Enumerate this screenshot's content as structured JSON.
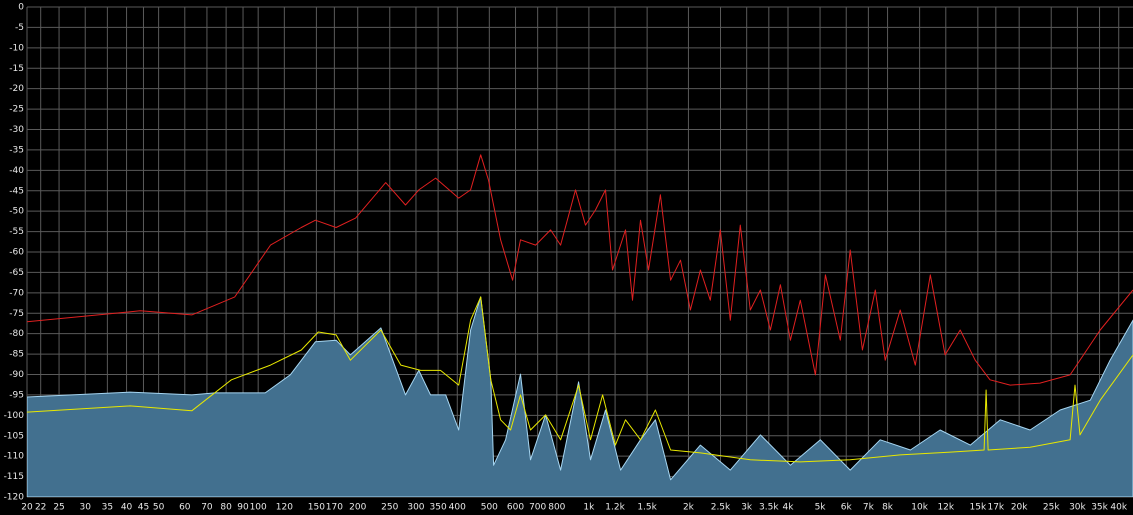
{
  "chart_data": {
    "type": "line",
    "xscale": "log",
    "grid": true,
    "background": "#000000",
    "xlim": [
      20,
      44180
    ],
    "ylim": [
      -120,
      0
    ],
    "xticks": [
      20,
      22,
      25,
      30,
      35,
      40,
      45,
      50,
      60,
      70,
      80,
      90,
      100,
      120,
      150,
      170,
      200,
      250,
      300,
      350,
      400,
      500,
      600,
      700,
      800,
      {
        "value": 1000,
        "label": "1k"
      },
      {
        "value": 1200,
        "label": "1.2k"
      },
      {
        "value": 1500,
        "label": "1.5k"
      },
      {
        "value": 2000,
        "label": "2k"
      },
      {
        "value": 2500,
        "label": "2.5k"
      },
      {
        "value": 3000,
        "label": "3k"
      },
      {
        "value": 3500,
        "label": "3.5k"
      },
      {
        "value": 4000,
        "label": "4k"
      },
      {
        "value": 5000,
        "label": "5k"
      },
      {
        "value": 6000,
        "label": "6k"
      },
      {
        "value": 7000,
        "label": "7k"
      },
      {
        "value": 8000,
        "label": "8k"
      },
      {
        "value": 10000,
        "label": "10k"
      },
      {
        "value": 12000,
        "label": "12k"
      },
      {
        "value": 15000,
        "label": "15k"
      },
      {
        "value": 17000,
        "label": "17k"
      },
      {
        "value": 20000,
        "label": "20k"
      },
      {
        "value": 25000,
        "label": "25k"
      },
      {
        "value": 30000,
        "label": "30k"
      },
      {
        "value": 35000,
        "label": "35k"
      },
      {
        "value": 40000,
        "label": "40k"
      }
    ],
    "yticks": [
      0,
      -5,
      -10,
      -15,
      -20,
      -25,
      -30,
      -35,
      -40,
      -45,
      -50,
      -55,
      -60,
      -65,
      -70,
      -75,
      -80,
      -85,
      -90,
      -95,
      -100,
      -105,
      -110,
      -115,
      -120
    ],
    "series": [
      {
        "type": "area",
        "color": "#42708f",
        "edge_color": "#a6d6f2",
        "x": [
          20,
          41,
          63,
          74,
          105,
          125,
          149,
          172,
          190,
          235,
          279,
          306,
          332,
          369,
          404,
          439,
          471,
          505,
          515,
          560,
          621,
          666,
          740,
          821,
          931,
          1011,
          1123,
          1247,
          1432,
          1589,
          1766,
          2173,
          2677,
          3300,
          4067,
          5011,
          6168,
          7602,
          9377,
          11536,
          14230,
          17540,
          21580,
          26600,
          32810,
          37680,
          44180
        ],
        "values": [
          -95.5,
          -94.3,
          -95,
          -94.5,
          -94.5,
          -90.1,
          -82,
          -81.6,
          -85.2,
          -78.6,
          -95,
          -89,
          -95,
          -95,
          -103.6,
          -79.1,
          -71,
          -91.3,
          -112.2,
          -106,
          -89.9,
          -110.9,
          -99.9,
          -113.4,
          -91.8,
          -110.9,
          -98.7,
          -113.4,
          -106,
          -101.1,
          -115.8,
          -107.3,
          -113.4,
          -104.8,
          -112.2,
          -106,
          -113.4,
          -106,
          -108.5,
          -103.6,
          -107.3,
          -101.1,
          -103.6,
          -98.7,
          -96.3,
          -86.5,
          -76.7
        ]
      },
      {
        "type": "line",
        "color": "#e8e800",
        "x": [
          20,
          41,
          63,
          83,
          109,
          135,
          152,
          172,
          190,
          235,
          270,
          310,
          356,
          404,
          439,
          471,
          505,
          541,
          580,
          621,
          666,
          740,
          821,
          931,
          1011,
          1100,
          1203,
          1290,
          1432,
          1589,
          1766,
          2173,
          3077,
          4359,
          6168,
          8736,
          12390,
          15670,
          15890,
          16110,
          21580,
          28510,
          29510,
          30550,
          35150,
          44180
        ],
        "values": [
          -99.2,
          -97.7,
          -98.9,
          -91.3,
          -87.7,
          -84,
          -79.6,
          -80.3,
          -86.5,
          -79.1,
          -87.7,
          -89,
          -89,
          -92.6,
          -76.7,
          -71,
          -91.3,
          -101.1,
          -103.6,
          -95,
          -103.6,
          -99.9,
          -106,
          -92.6,
          -106,
          -95,
          -107.3,
          -101.1,
          -106,
          -98.7,
          -108.5,
          -109.2,
          -110.9,
          -111.4,
          -110.9,
          -109.7,
          -109,
          -108.5,
          -93.8,
          -108.5,
          -107.8,
          -106,
          -92.6,
          -104.8,
          -96.3,
          -85.2
        ]
      },
      {
        "type": "line",
        "color": "#e02020",
        "x": [
          20,
          44,
          63,
          85,
          109,
          135,
          149,
          172,
          197,
          243,
          279,
          306,
          344,
          404,
          439,
          471,
          497,
          541,
          588,
          621,
          690,
          766,
          821,
          911,
          977,
          1047,
          1123,
          1179,
          1290,
          1355,
          1432,
          1514,
          1645,
          1766,
          1892,
          2028,
          2173,
          2329,
          2497,
          2677,
          2870,
          3077,
          3300,
          3539,
          3794,
          4067,
          4359,
          4842,
          5188,
          5755,
          6168,
          6713,
          7345,
          7870,
          8736,
          9705,
          10770,
          11943,
          13270,
          14730,
          16330,
          18790,
          23120,
          28510,
          35150,
          44180
        ],
        "values": [
          -77.1,
          -74.4,
          -75.4,
          -71,
          -58.3,
          -54,
          -52.2,
          -54,
          -51.7,
          -43,
          -48.5,
          -44.8,
          -41.9,
          -46.8,
          -44.8,
          -36.2,
          -42.4,
          -57,
          -66.9,
          -57,
          -58.3,
          -54.6,
          -58.3,
          -44.8,
          -53.4,
          -49.7,
          -44.8,
          -64.4,
          -54.6,
          -71.8,
          -52.2,
          -64.4,
          -46,
          -66.9,
          -62,
          -74.2,
          -64.4,
          -71.8,
          -54.6,
          -76.7,
          -53.4,
          -74.2,
          -69.3,
          -79.1,
          -68,
          -81.6,
          -71.8,
          -90.1,
          -65.6,
          -81.6,
          -59.5,
          -84,
          -69.3,
          -86.5,
          -74.2,
          -87.7,
          -65.6,
          -85.2,
          -79.1,
          -86.5,
          -91.3,
          -92.6,
          -92.1,
          -90.1,
          -79.1,
          -69.3
        ]
      }
    ]
  }
}
